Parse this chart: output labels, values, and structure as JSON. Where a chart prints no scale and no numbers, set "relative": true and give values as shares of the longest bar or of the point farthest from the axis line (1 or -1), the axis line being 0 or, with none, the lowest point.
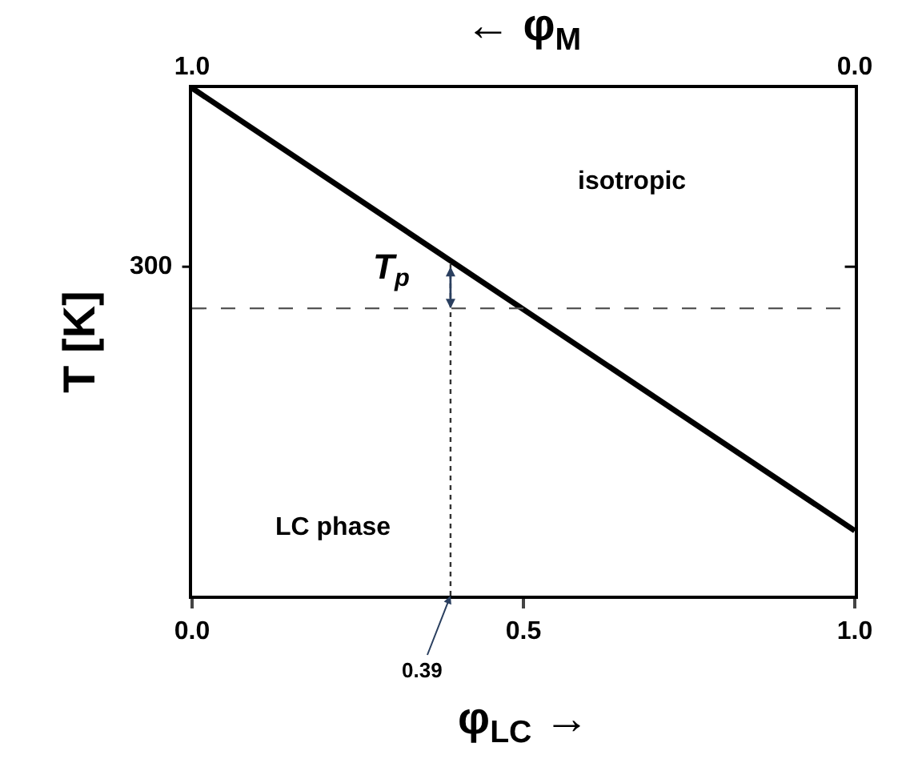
{
  "chart_data": {
    "type": "line",
    "relative": true,
    "xlabel": "φ$_{LC}$ →",
    "ylabel": "T [K]",
    "x2label": "← φ$_{M}$",
    "x": [
      0,
      1
    ],
    "series": [
      {
        "color": "#000000",
        "values": [
          1,
          0.128
        ]
      }
    ],
    "xlim": [
      0,
      1
    ],
    "xticks": [
      {
        "value": 0,
        "label": "0.0"
      },
      {
        "value": 0.5,
        "label": "0.5"
      },
      {
        "value": 1,
        "label": "1.0"
      }
    ],
    "x2lim": [
      1,
      0
    ],
    "x2ticks": [
      {
        "value": 1,
        "label": "1.0"
      },
      {
        "value": 0,
        "label": "0.0"
      }
    ],
    "ref_lines": [
      {
        "axis": "y",
        "value": 0.566,
        "label": "T$_{p}$",
        "line_style": "dashed",
        "color": "#555555"
      },
      {
        "axis": "x",
        "value": 0.39,
        "label": "0.39",
        "line_style": "dotted",
        "color": "#333333"
      }
    ],
    "annotations": [
      "300",
      "isotropic",
      "LC phase"
    ],
    "legend": false,
    "marker": "none",
    "line_style": "solid"
  }
}
